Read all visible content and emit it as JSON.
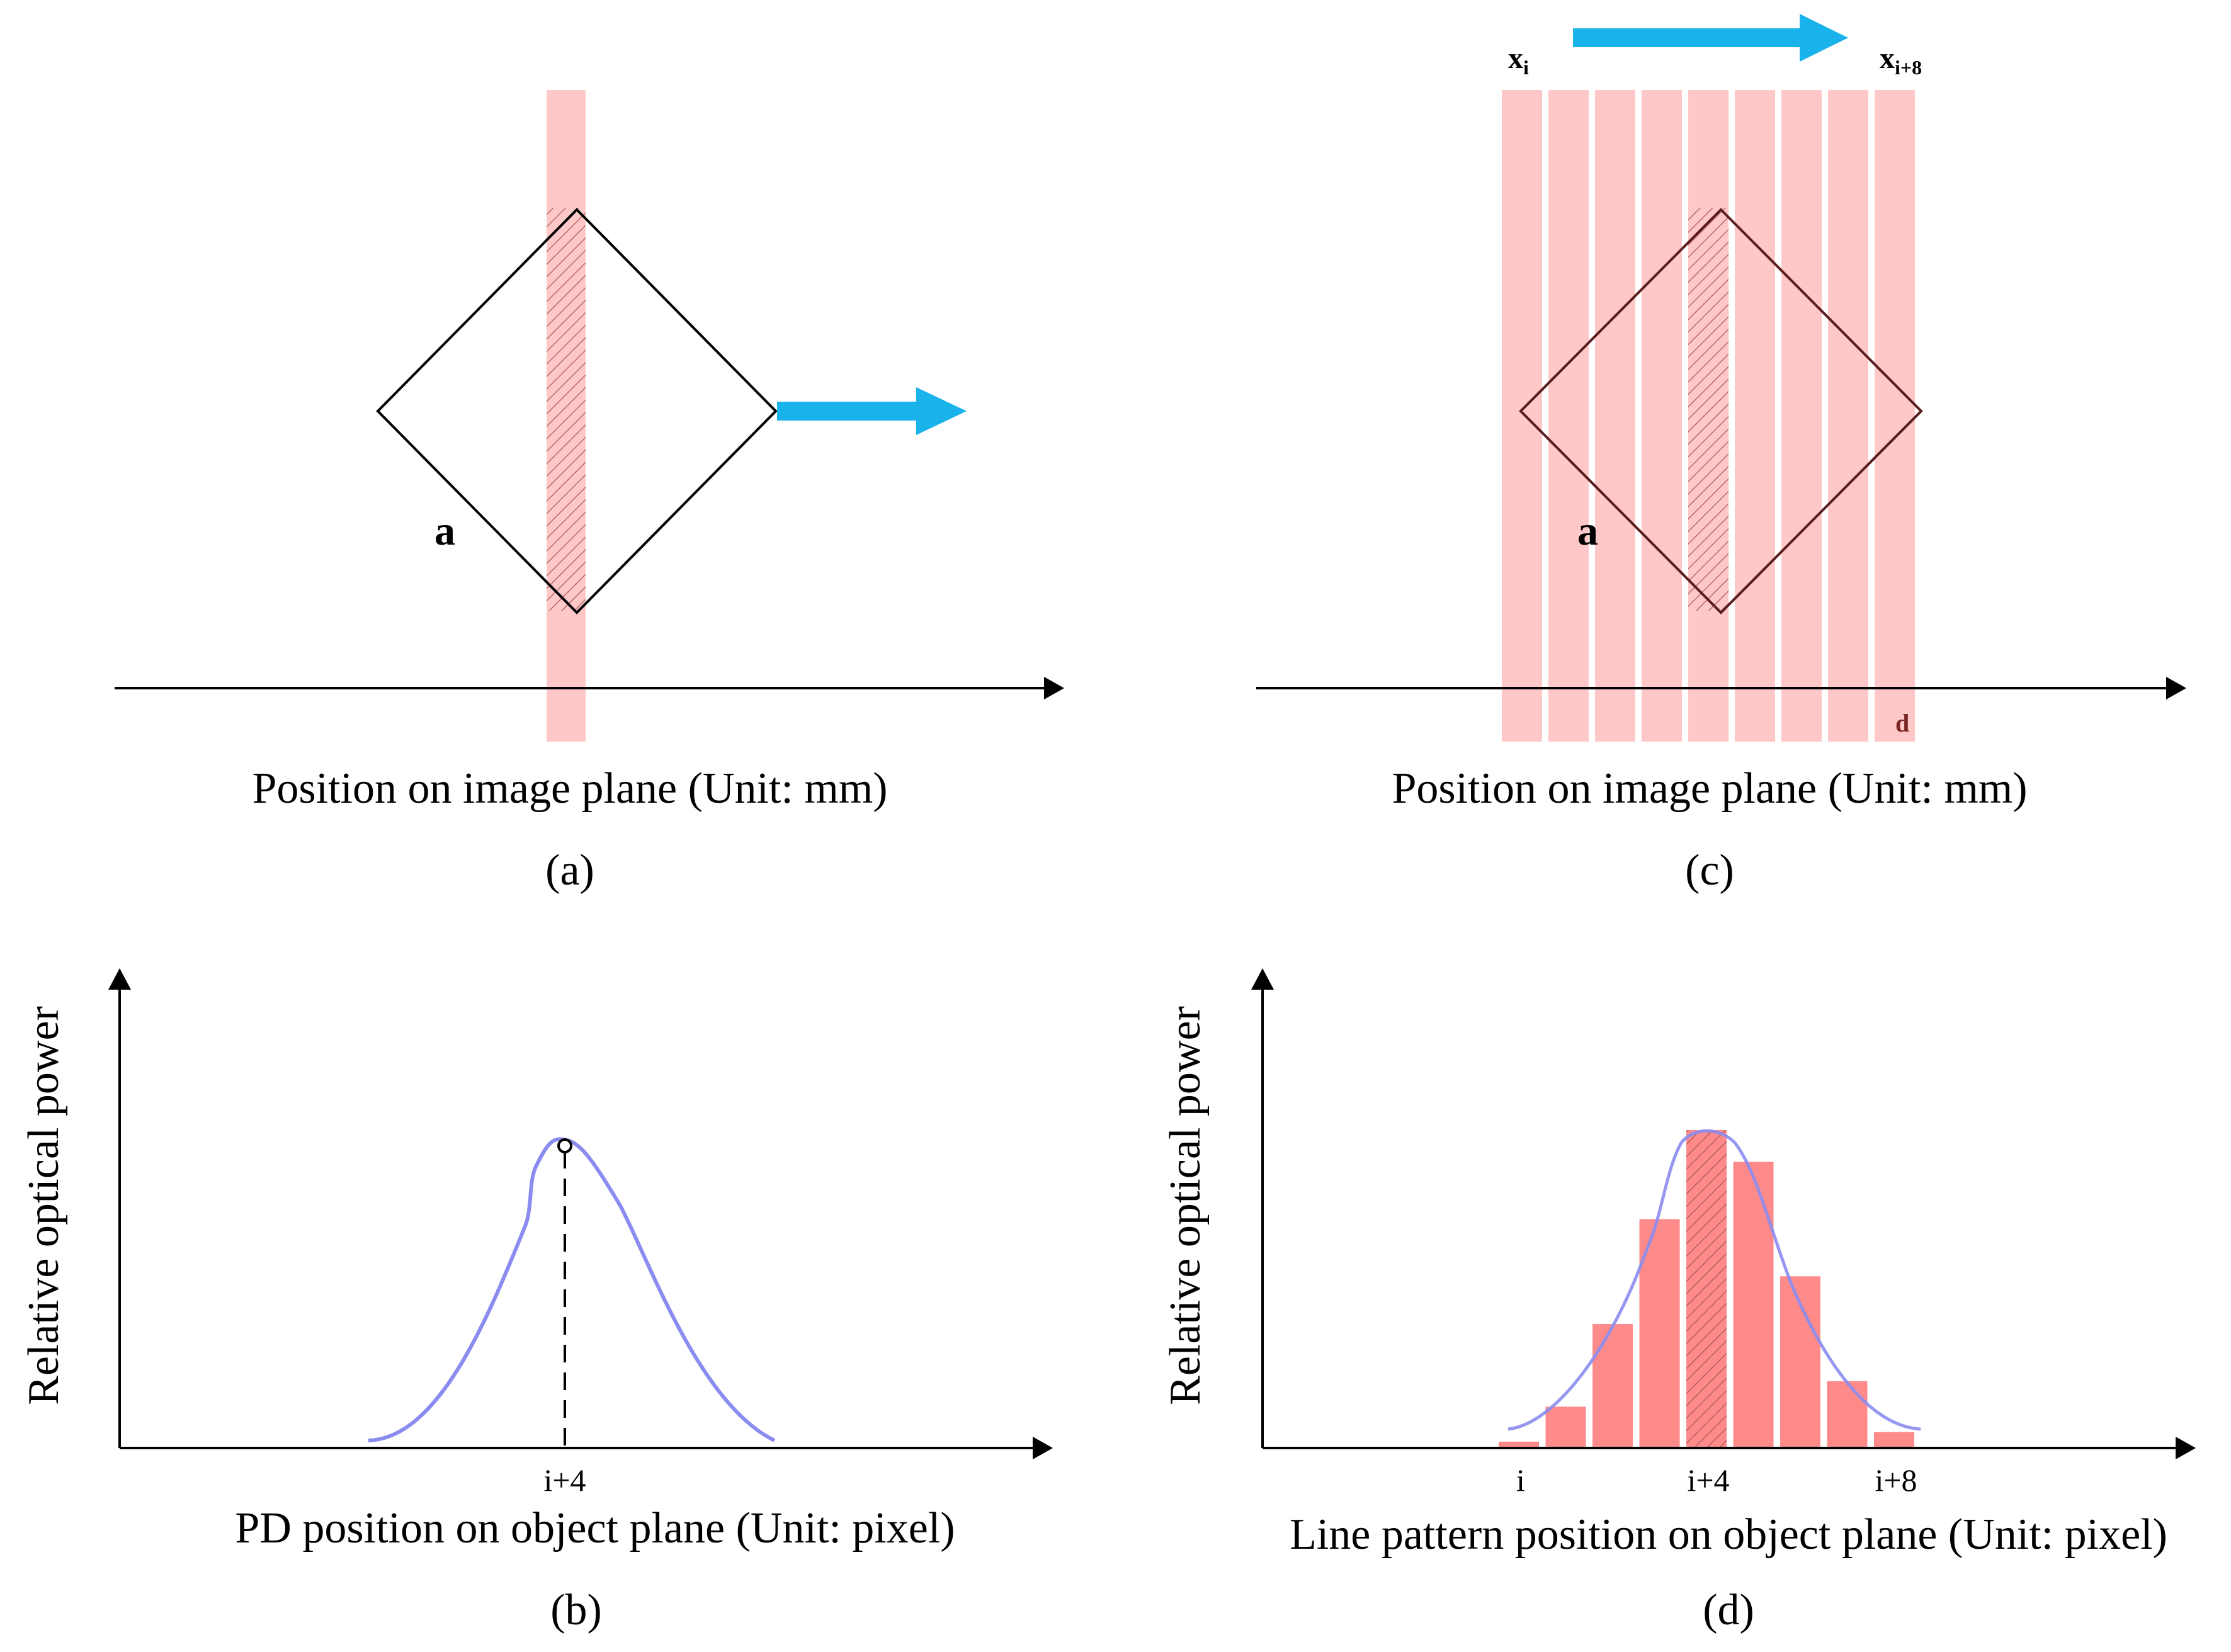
{
  "panel_a": {
    "caption": "Position on image plane (Unit: mm)",
    "label": "(a)",
    "side_label": "a"
  },
  "panel_b": {
    "caption": "PD position on object plane (Unit: pixel)",
    "label": "(b)",
    "ylabel": "Relative optical power",
    "tick": "i+4"
  },
  "panel_c": {
    "caption": "Position on image plane (Unit: mm)",
    "label": "(c)",
    "side_label": "a",
    "x_start": "x",
    "x_start_sub": "i",
    "x_end": "x",
    "x_end_sub": "i+8",
    "width_label": "d"
  },
  "panel_d": {
    "caption": "Line pattern position on object plane (Unit: pixel)",
    "label": "(d)",
    "ylabel": "Relative optical power",
    "ticks": [
      "i",
      "i+4",
      "i+8"
    ],
    "bar_values": [
      0.02,
      0.13,
      0.39,
      0.72,
      1.0,
      0.9,
      0.54,
      0.21,
      0.05
    ]
  },
  "colors": {
    "stripe": "#ffc8c8",
    "bar": "#ff8a8a",
    "arrow": "#1ab2ea",
    "curve": "#8a8cf0",
    "dark_label": "#7a2424"
  }
}
